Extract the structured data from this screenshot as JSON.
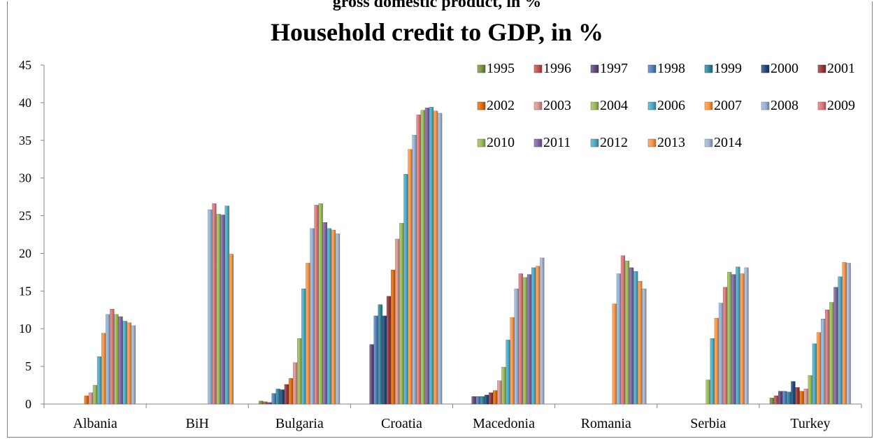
{
  "page": {
    "top_partial_text": "gross domestic product, in %"
  },
  "chart_data": {
    "type": "bar",
    "title": "Household credit to GDP, in %",
    "xlabel": "",
    "ylabel": "",
    "ylim": [
      0,
      45
    ],
    "yticks": [
      0,
      5,
      10,
      15,
      20,
      25,
      30,
      35,
      40,
      45
    ],
    "grid": false,
    "legend_position": "top-right",
    "categories": [
      "Albania",
      "BiH",
      "Bulgaria",
      "Croatia",
      "Macedonia",
      "Romania",
      "Serbia",
      "Turkey"
    ],
    "series": [
      {
        "name": "1995",
        "color": "#77933c",
        "values": [
          null,
          null,
          0.4,
          null,
          null,
          null,
          null,
          0.8
        ]
      },
      {
        "name": "1996",
        "color": "#c0504d",
        "values": [
          null,
          null,
          0.3,
          null,
          null,
          null,
          null,
          1.1
        ]
      },
      {
        "name": "1997",
        "color": "#604a7b",
        "values": [
          null,
          null,
          0.2,
          7.9,
          1.0,
          null,
          null,
          1.7
        ]
      },
      {
        "name": "1998",
        "color": "#4f81bd",
        "values": [
          null,
          null,
          1.4,
          11.7,
          1.0,
          null,
          null,
          1.7
        ]
      },
      {
        "name": "1999",
        "color": "#31859c",
        "values": [
          null,
          null,
          2.0,
          13.2,
          1.0,
          null,
          null,
          1.6
        ]
      },
      {
        "name": "2000",
        "color": "#1f497d",
        "values": [
          null,
          null,
          1.9,
          11.7,
          1.2,
          null,
          null,
          3.0
        ]
      },
      {
        "name": "2001",
        "color": "#953735",
        "values": [
          null,
          null,
          2.6,
          14.3,
          1.5,
          null,
          null,
          2.2
        ]
      },
      {
        "name": "2002",
        "color": "#e46c0a",
        "values": [
          1.1,
          null,
          3.4,
          17.8,
          1.8,
          null,
          null,
          1.7
        ]
      },
      {
        "name": "2003",
        "color": "#d99694",
        "values": [
          1.5,
          null,
          5.5,
          21.9,
          3.1,
          null,
          null,
          2.0
        ]
      },
      {
        "name": "2004",
        "color": "#9bbb59",
        "values": [
          2.5,
          null,
          8.7,
          24.0,
          4.9,
          null,
          3.2,
          3.8
        ]
      },
      {
        "name": "2006",
        "color": "#4bacc6",
        "values": [
          6.3,
          null,
          15.3,
          30.5,
          8.5,
          null,
          8.7,
          8.0
        ]
      },
      {
        "name": "2007",
        "color": "#f79646",
        "values": [
          9.4,
          null,
          18.7,
          33.8,
          11.5,
          13.3,
          11.4,
          9.5
        ]
      },
      {
        "name": "2008",
        "color": "#95b3d7",
        "values": [
          11.9,
          25.8,
          23.3,
          35.7,
          15.3,
          17.3,
          13.4,
          11.3
        ]
      },
      {
        "name": "2009",
        "color": "#d9797a",
        "values": [
          12.6,
          26.6,
          26.4,
          38.4,
          17.3,
          19.7,
          15.5,
          12.5
        ]
      },
      {
        "name": "2010",
        "color": "#9bbb59",
        "values": [
          11.9,
          25.2,
          26.6,
          39.0,
          16.8,
          19.0,
          17.5,
          13.5
        ]
      },
      {
        "name": "2011",
        "color": "#8064a2",
        "values": [
          11.6,
          25.1,
          24.1,
          39.3,
          17.2,
          18.1,
          17.2,
          15.5
        ]
      },
      {
        "name": "2012",
        "color": "#4bacc6",
        "values": [
          11.0,
          26.3,
          23.3,
          39.4,
          18.1,
          17.6,
          18.2,
          16.9
        ]
      },
      {
        "name": "2013",
        "color": "#f79646",
        "values": [
          10.8,
          19.9,
          23.1,
          38.9,
          18.3,
          16.3,
          17.3,
          18.8
        ]
      },
      {
        "name": "2014",
        "color": "#a5b5d0",
        "values": [
          10.4,
          null,
          22.6,
          38.6,
          19.4,
          15.3,
          18.1,
          18.7
        ]
      }
    ]
  }
}
